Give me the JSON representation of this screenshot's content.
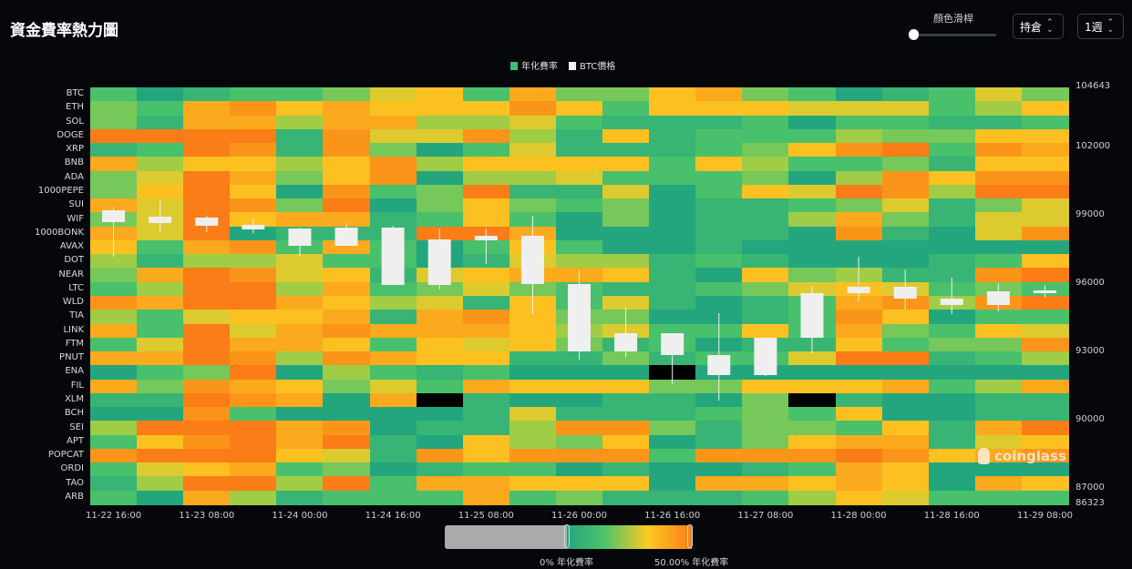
{
  "header": {
    "title": "資金費率熱力圖",
    "color_slider_label": "顏色滑桿",
    "color_slider_value": 0,
    "metric_select": "持倉",
    "range_select": "1週"
  },
  "legend": [
    {
      "label": "年化費率",
      "color": "#3cbf6e"
    },
    {
      "label": "BTC價格",
      "color": "#f0f0f0"
    }
  ],
  "watermark": "coinglass",
  "visual_map": {
    "min_label": "0% 年化費率",
    "max_label": "50.00% 年化費率",
    "min": 0,
    "max": 50,
    "null_color": "#000000"
  },
  "chart_data": {
    "type": "heatmap",
    "title": "資金費率熱力圖",
    "x": [
      "11-22 16:00",
      "11-23 00:00",
      "11-23 08:00",
      "11-23 16:00",
      "11-24 00:00",
      "11-24 08:00",
      "11-24 16:00",
      "11-25 00:00",
      "11-25 08:00",
      "11-25 16:00",
      "11-26 00:00",
      "11-26 08:00",
      "11-26 16:00",
      "11-27 00:00",
      "11-27 08:00",
      "11-27 16:00",
      "11-28 00:00",
      "11-28 08:00",
      "11-28 16:00",
      "11-29 00:00",
      "11-29 08:00"
    ],
    "x_tick_labels": [
      "11-22 16:00",
      "11-23 08:00",
      "11-24 00:00",
      "11-24 16:00",
      "11-25 08:00",
      "11-26 00:00",
      "11-26 16:00",
      "11-27 08:00",
      "11-28 00:00",
      "11-28 16:00",
      "11-29 08:00"
    ],
    "y": [
      "BTC",
      "ETH",
      "SOL",
      "DOGE",
      "XRP",
      "BNB",
      "ADA",
      "1000PEPE",
      "SUI",
      "WIF",
      "1000BONK",
      "AVAX",
      "DOT",
      "NEAR",
      "LTC",
      "WLD",
      "TIA",
      "LINK",
      "FTM",
      "PNUT",
      "ENA",
      "FIL",
      "XLM",
      "BCH",
      "SEI",
      "APT",
      "POPCAT",
      "ORDI",
      "TAO",
      "ARB"
    ],
    "value_unit": "% 年化費率",
    "value_range": [
      0,
      50
    ],
    "values": [
      [
        11,
        0,
        6,
        11,
        11,
        17,
        28,
        33,
        11,
        39,
        17,
        17,
        33,
        39,
        17,
        11,
        0,
        6,
        11,
        28,
        17
      ],
      [
        17,
        11,
        39,
        44,
        33,
        39,
        33,
        33,
        33,
        44,
        33,
        11,
        33,
        33,
        33,
        28,
        28,
        28,
        11,
        22,
        33
      ],
      [
        17,
        6,
        39,
        39,
        22,
        39,
        39,
        22,
        22,
        28,
        11,
        6,
        6,
        6,
        11,
        0,
        11,
        11,
        6,
        6,
        11
      ],
      [
        50,
        50,
        50,
        50,
        6,
        44,
        28,
        28,
        44,
        22,
        6,
        33,
        6,
        11,
        11,
        11,
        22,
        17,
        17,
        33,
        33
      ],
      [
        6,
        11,
        50,
        44,
        6,
        44,
        17,
        0,
        11,
        28,
        6,
        6,
        6,
        11,
        17,
        33,
        44,
        50,
        11,
        44,
        39
      ],
      [
        39,
        22,
        33,
        33,
        22,
        33,
        44,
        22,
        33,
        33,
        33,
        33,
        11,
        33,
        22,
        11,
        11,
        17,
        6,
        33,
        33
      ],
      [
        17,
        28,
        50,
        39,
        17,
        33,
        44,
        0,
        22,
        22,
        28,
        11,
        11,
        11,
        17,
        0,
        22,
        44,
        33,
        44,
        44
      ],
      [
        17,
        33,
        50,
        33,
        0,
        44,
        11,
        17,
        50,
        6,
        6,
        28,
        0,
        11,
        33,
        28,
        50,
        44,
        22,
        50,
        50
      ],
      [
        39,
        28,
        50,
        44,
        17,
        50,
        0,
        17,
        33,
        17,
        11,
        17,
        0,
        6,
        6,
        11,
        17,
        28,
        6,
        17,
        28
      ],
      [
        17,
        28,
        50,
        33,
        39,
        39,
        6,
        11,
        33,
        11,
        0,
        17,
        0,
        6,
        6,
        22,
        39,
        17,
        6,
        28,
        28
      ],
      [
        39,
        28,
        50,
        0,
        6,
        6,
        6,
        50,
        50,
        39,
        0,
        0,
        0,
        6,
        6,
        0,
        44,
        6,
        0,
        28,
        44
      ],
      [
        33,
        11,
        39,
        44,
        11,
        39,
        11,
        0,
        11,
        33,
        11,
        0,
        0,
        6,
        0,
        0,
        0,
        0,
        0,
        0,
        0
      ],
      [
        22,
        6,
        22,
        22,
        28,
        11,
        11,
        0,
        6,
        28,
        22,
        22,
        6,
        11,
        6,
        0,
        0,
        0,
        6,
        11,
        33
      ],
      [
        17,
        39,
        50,
        44,
        28,
        33,
        6,
        28,
        33,
        39,
        39,
        33,
        6,
        0,
        33,
        17,
        22,
        6,
        6,
        44,
        50
      ],
      [
        11,
        22,
        50,
        50,
        22,
        39,
        11,
        17,
        28,
        17,
        11,
        6,
        6,
        11,
        17,
        28,
        33,
        28,
        11,
        17,
        11
      ],
      [
        44,
        39,
        50,
        50,
        39,
        33,
        22,
        28,
        6,
        33,
        11,
        28,
        6,
        0,
        6,
        11,
        39,
        44,
        22,
        44,
        50
      ],
      [
        22,
        11,
        28,
        33,
        33,
        39,
        6,
        39,
        44,
        33,
        17,
        17,
        0,
        0,
        6,
        11,
        44,
        33,
        0,
        11,
        11
      ],
      [
        39,
        11,
        50,
        28,
        39,
        44,
        39,
        39,
        39,
        33,
        22,
        28,
        11,
        11,
        33,
        11,
        39,
        17,
        11,
        33,
        28
      ],
      [
        11,
        28,
        50,
        39,
        39,
        33,
        11,
        33,
        28,
        33,
        17,
        6,
        11,
        0,
        6,
        6,
        33,
        11,
        17,
        17,
        44
      ],
      [
        39,
        39,
        50,
        44,
        22,
        44,
        39,
        33,
        33,
        6,
        6,
        17,
        6,
        11,
        11,
        28,
        50,
        50,
        6,
        11,
        22
      ],
      [
        0,
        11,
        17,
        50,
        0,
        22,
        11,
        6,
        11,
        0,
        0,
        0,
        null,
        0,
        0,
        0,
        0,
        0,
        0,
        0,
        0
      ],
      [
        39,
        17,
        44,
        39,
        33,
        17,
        28,
        11,
        39,
        33,
        33,
        33,
        17,
        17,
        33,
        33,
        33,
        39,
        11,
        22,
        39
      ],
      [
        6,
        6,
        50,
        44,
        39,
        0,
        39,
        null,
        6,
        0,
        0,
        6,
        6,
        0,
        17,
        null,
        6,
        0,
        0,
        6,
        6
      ],
      [
        0,
        0,
        44,
        11,
        0,
        0,
        0,
        0,
        6,
        28,
        6,
        6,
        6,
        11,
        17,
        11,
        33,
        0,
        0,
        6,
        6
      ],
      [
        22,
        50,
        50,
        50,
        39,
        44,
        0,
        6,
        6,
        22,
        44,
        44,
        17,
        6,
        17,
        17,
        11,
        33,
        6,
        39,
        50
      ],
      [
        11,
        33,
        44,
        50,
        39,
        50,
        6,
        0,
        33,
        22,
        17,
        33,
        0,
        6,
        17,
        33,
        39,
        39,
        6,
        28,
        33
      ],
      [
        44,
        50,
        50,
        50,
        33,
        28,
        6,
        44,
        33,
        44,
        44,
        44,
        11,
        44,
        44,
        44,
        50,
        44,
        33,
        39,
        44
      ],
      [
        11,
        28,
        33,
        39,
        11,
        17,
        0,
        6,
        11,
        11,
        0,
        6,
        0,
        0,
        6,
        11,
        39,
        33,
        0,
        0,
        0
      ],
      [
        6,
        22,
        50,
        50,
        22,
        50,
        11,
        39,
        39,
        33,
        33,
        33,
        0,
        39,
        39,
        33,
        39,
        33,
        0,
        39,
        33
      ],
      [
        11,
        0,
        39,
        22,
        6,
        11,
        11,
        11,
        39,
        11,
        17,
        6,
        6,
        6,
        11,
        22,
        33,
        28,
        11,
        11,
        11
      ]
    ],
    "secondary": {
      "type": "candlestick",
      "name": "BTC價格",
      "y_axis_ticks": [
        104643,
        102000,
        99000,
        96000,
        93000,
        90000,
        87000,
        86323
      ],
      "y_range": [
        86323,
        104643
      ],
      "ohlc": [
        [
          99243,
          98723,
          97203,
          99403
        ],
        [
          98963,
          98683,
          98283,
          99643
        ],
        [
          98923,
          98563,
          98283,
          99003
        ],
        [
          98603,
          98403,
          98243,
          98883
        ],
        [
          98443,
          97683,
          97203,
          98483
        ],
        [
          98483,
          97683,
          97683,
          98683
        ],
        [
          98483,
          95963,
          95963,
          98563
        ],
        [
          97963,
          95963,
          95763,
          98443
        ],
        [
          98123,
          97923,
          96883,
          98443
        ],
        [
          98123,
          96003,
          94683,
          99003
        ],
        [
          96003,
          93043,
          92683,
          96603
        ],
        [
          93843,
          93043,
          92803,
          94963
        ],
        [
          93843,
          92883,
          91603,
          93843
        ],
        [
          92003,
          92883,
          90883,
          94723
        ],
        [
          92003,
          93643,
          91963,
          93643
        ],
        [
          93643,
          95603,
          92963,
          95923
        ],
        [
          95603,
          95883,
          95243,
          97203
        ],
        [
          95363,
          95883,
          94883,
          96643
        ],
        [
          95083,
          95363,
          94683,
          96283
        ],
        [
          95083,
          95683,
          94803,
          96043
        ],
        [
          95603,
          95723,
          95403,
          95963
        ]
      ]
    }
  }
}
